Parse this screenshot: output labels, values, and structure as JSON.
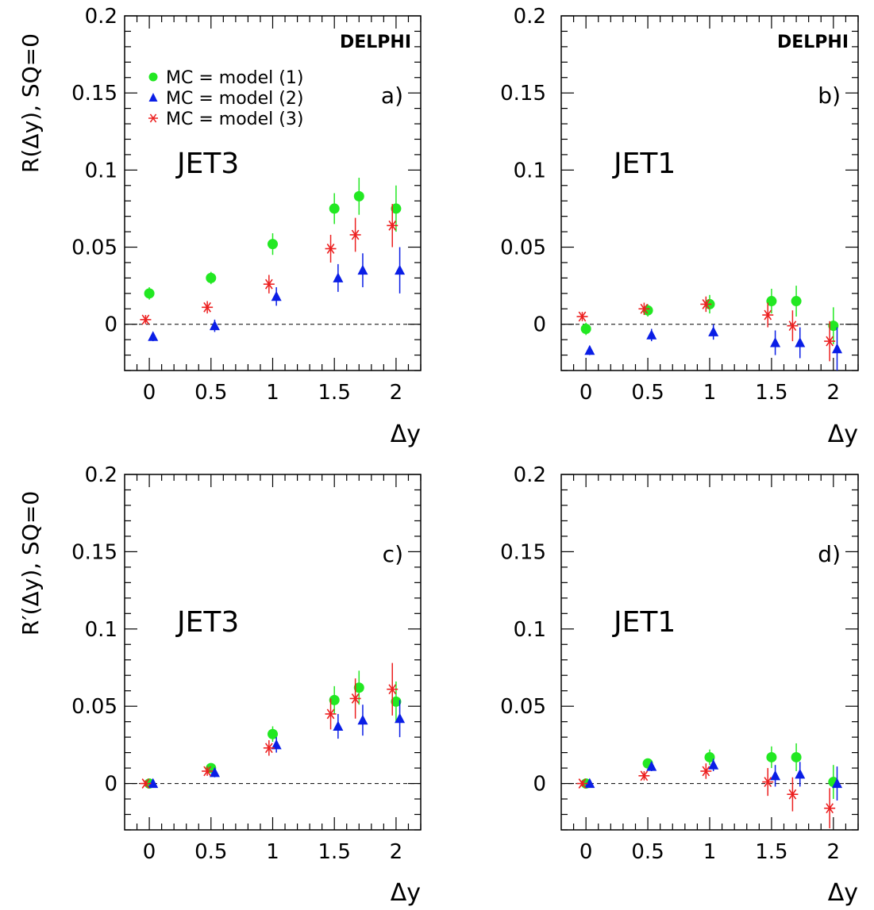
{
  "figure": {
    "colors": {
      "model1": "#22e822",
      "model2": "#0a1ee6",
      "model3": "#ec2020",
      "axis": "#000000",
      "zero_line": "#000000"
    },
    "legend": {
      "placement": "top-left of panel a",
      "entries": [
        {
          "label": "MC = model (1)",
          "marker": "circle",
          "color_key": "model1"
        },
        {
          "label": "MC = model (2)",
          "marker": "triangle",
          "color_key": "model2"
        },
        {
          "label": "MC = model (3)",
          "marker": "asterisk",
          "color_key": "model3"
        }
      ]
    },
    "row_ylabels": [
      "R(Δy), SQ=0",
      "R′(Δy), SQ=0"
    ]
  },
  "chart_data": [
    {
      "type": "scatter",
      "panel": "a)",
      "title": "",
      "label": "JET3",
      "experiment": "DELPHI",
      "xlabel": "Δy",
      "ylabel": "R(Δy), SQ=0",
      "xlim": [
        -0.2,
        2.2
      ],
      "ylim": [
        -0.03,
        0.2
      ],
      "xticks": [
        0,
        0.5,
        1,
        1.5,
        2
      ],
      "xtick_labels": [
        "0",
        "0.5",
        "1",
        "1.5",
        "2"
      ],
      "yticks": [
        0,
        0.05,
        0.1,
        0.15,
        0.2
      ],
      "ytick_labels": [
        "0",
        "0.05",
        "0.1",
        "0.15",
        "0.2"
      ],
      "zero_line": true,
      "grid": false,
      "series": [
        {
          "name": "MC = model (1)",
          "marker": "circle",
          "color_key": "model1",
          "x": [
            0,
            0.5,
            1,
            1.5,
            1.7,
            2
          ],
          "y": [
            0.02,
            0.03,
            0.052,
            0.075,
            0.083,
            0.075
          ],
          "err": [
            0.004,
            0.004,
            0.007,
            0.01,
            0.012,
            0.015
          ]
        },
        {
          "name": "MC = model (2)",
          "marker": "triangle",
          "color_key": "model2",
          "x": [
            0.03,
            0.53,
            1.03,
            1.53,
            1.73,
            2.03
          ],
          "y": [
            -0.008,
            -0.001,
            0.018,
            0.03,
            0.035,
            0.035
          ],
          "err": [
            0.003,
            0.004,
            0.006,
            0.009,
            0.011,
            0.015
          ]
        },
        {
          "name": "MC = model (3)",
          "marker": "asterisk",
          "color_key": "model3",
          "x": [
            -0.03,
            0.47,
            0.97,
            1.47,
            1.67,
            1.97
          ],
          "y": [
            0.003,
            0.011,
            0.026,
            0.049,
            0.058,
            0.064
          ],
          "err": [
            0.003,
            0.004,
            0.006,
            0.009,
            0.011,
            0.014
          ]
        }
      ]
    },
    {
      "type": "scatter",
      "panel": "b)",
      "title": "",
      "label": "JET1",
      "experiment": "DELPHI",
      "xlabel": "Δy",
      "ylabel": "",
      "xlim": [
        -0.2,
        2.2
      ],
      "ylim": [
        -0.03,
        0.2
      ],
      "xticks": [
        0,
        0.5,
        1,
        1.5,
        2
      ],
      "xtick_labels": [
        "0",
        "0.5",
        "1",
        "1.5",
        "2"
      ],
      "yticks": [
        0,
        0.05,
        0.1,
        0.15,
        0.2
      ],
      "ytick_labels": [
        "0",
        "0.05",
        "0.1",
        "0.15",
        "0.2"
      ],
      "zero_line": true,
      "grid": false,
      "series": [
        {
          "name": "MC = model (1)",
          "marker": "circle",
          "color_key": "model1",
          "x": [
            0,
            0.5,
            1,
            1.5,
            1.7,
            2
          ],
          "y": [
            -0.003,
            0.009,
            0.013,
            0.015,
            0.015,
            -0.001
          ],
          "err": [
            0.004,
            0.004,
            0.006,
            0.008,
            0.01,
            0.012
          ]
        },
        {
          "name": "MC = model (2)",
          "marker": "triangle",
          "color_key": "model2",
          "x": [
            0.03,
            0.53,
            1.03,
            1.53,
            1.73,
            2.03
          ],
          "y": [
            -0.017,
            -0.007,
            -0.005,
            -0.012,
            -0.012,
            -0.016
          ],
          "err": [
            0.003,
            0.004,
            0.005,
            0.008,
            0.01,
            0.014
          ]
        },
        {
          "name": "MC = model (3)",
          "marker": "asterisk",
          "color_key": "model3",
          "x": [
            -0.03,
            0.47,
            0.97,
            1.47,
            1.67,
            1.97
          ],
          "y": [
            0.005,
            0.01,
            0.013,
            0.006,
            -0.001,
            -0.011
          ],
          "err": [
            0.003,
            0.004,
            0.005,
            0.008,
            0.01,
            0.013
          ]
        }
      ]
    },
    {
      "type": "scatter",
      "panel": "c)",
      "title": "",
      "label": "JET3",
      "experiment": "",
      "xlabel": "Δy",
      "ylabel": "R′(Δy), SQ=0",
      "xlim": [
        -0.2,
        2.2
      ],
      "ylim": [
        -0.03,
        0.2
      ],
      "xticks": [
        0,
        0.5,
        1,
        1.5,
        2
      ],
      "xtick_labels": [
        "0",
        "0.5",
        "1",
        "1.5",
        "2"
      ],
      "yticks": [
        0,
        0.05,
        0.1,
        0.15,
        0.2
      ],
      "ytick_labels": [
        "0",
        "0.05",
        "0.1",
        "0.15",
        "0.2"
      ],
      "zero_line": true,
      "grid": false,
      "series": [
        {
          "name": "MC = model (1)",
          "marker": "circle",
          "color_key": "model1",
          "x": [
            0,
            0.5,
            1,
            1.5,
            1.7,
            2
          ],
          "y": [
            0.0,
            0.01,
            0.032,
            0.054,
            0.062,
            0.053
          ],
          "err": [
            0.002,
            0.003,
            0.005,
            0.009,
            0.011,
            0.013
          ]
        },
        {
          "name": "MC = model (2)",
          "marker": "triangle",
          "color_key": "model2",
          "x": [
            0.03,
            0.53,
            1.03,
            1.53,
            1.73,
            2.03
          ],
          "y": [
            0.0,
            0.007,
            0.025,
            0.037,
            0.041,
            0.042
          ],
          "err": [
            0.002,
            0.003,
            0.005,
            0.008,
            0.01,
            0.012
          ]
        },
        {
          "name": "MC = model (3)",
          "marker": "asterisk",
          "color_key": "model3",
          "x": [
            -0.03,
            0.47,
            0.97,
            1.47,
            1.67,
            1.97
          ],
          "y": [
            0.0,
            0.008,
            0.023,
            0.045,
            0.055,
            0.061
          ],
          "err": [
            0.002,
            0.003,
            0.005,
            0.01,
            0.013,
            0.017
          ]
        }
      ]
    },
    {
      "type": "scatter",
      "panel": "d)",
      "title": "",
      "label": "JET1",
      "experiment": "",
      "xlabel": "Δy",
      "ylabel": "",
      "xlim": [
        -0.2,
        2.2
      ],
      "ylim": [
        -0.03,
        0.2
      ],
      "xticks": [
        0,
        0.5,
        1,
        1.5,
        2
      ],
      "xtick_labels": [
        "0",
        "0.5",
        "1",
        "1.5",
        "2"
      ],
      "yticks": [
        0,
        0.05,
        0.1,
        0.15,
        0.2
      ],
      "ytick_labels": [
        "0",
        "0.05",
        "0.1",
        "0.15",
        "0.2"
      ],
      "zero_line": true,
      "grid": false,
      "series": [
        {
          "name": "MC = model (1)",
          "marker": "circle",
          "color_key": "model1",
          "x": [
            0,
            0.5,
            1,
            1.5,
            1.7,
            2
          ],
          "y": [
            0.0,
            0.013,
            0.017,
            0.017,
            0.017,
            0.001
          ],
          "err": [
            0.002,
            0.003,
            0.005,
            0.007,
            0.009,
            0.011
          ]
        },
        {
          "name": "MC = model (2)",
          "marker": "triangle",
          "color_key": "model2",
          "x": [
            0.03,
            0.53,
            1.03,
            1.53,
            1.73,
            2.03
          ],
          "y": [
            0.0,
            0.011,
            0.012,
            0.005,
            0.006,
            0.0
          ],
          "err": [
            0.002,
            0.003,
            0.004,
            0.007,
            0.008,
            0.011
          ]
        },
        {
          "name": "MC = model (3)",
          "marker": "asterisk",
          "color_key": "model3",
          "x": [
            -0.03,
            0.47,
            0.97,
            1.47,
            1.67,
            1.97
          ],
          "y": [
            0.0,
            0.005,
            0.008,
            0.001,
            -0.007,
            -0.016
          ],
          "err": [
            0.002,
            0.003,
            0.005,
            0.009,
            0.011,
            0.013
          ]
        }
      ]
    }
  ]
}
